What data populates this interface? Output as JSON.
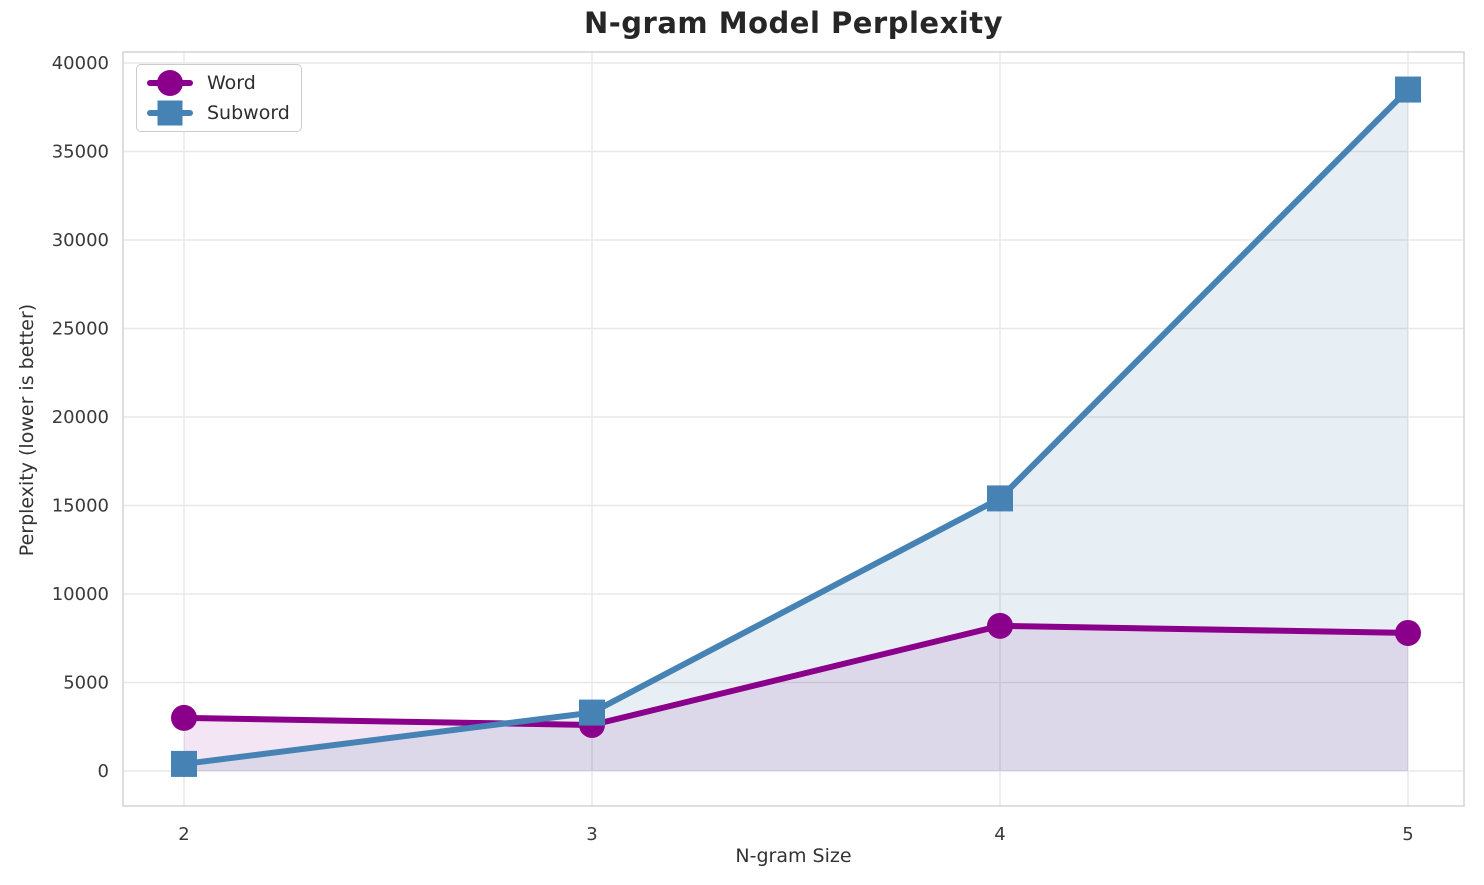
{
  "chart_data": {
    "type": "line",
    "title": "N-gram Model Perplexity",
    "xlabel": "N-gram Size",
    "ylabel": "Perplexity (lower is better)",
    "categories": [
      2,
      3,
      4,
      5
    ],
    "series": [
      {
        "name": "Word",
        "marker": "circle",
        "color": "#8B008B",
        "fill_opacity": 0.1,
        "values": [
          3000,
          2600,
          8200,
          7800
        ]
      },
      {
        "name": "Subword",
        "marker": "square",
        "color": "#4682B4",
        "fill_opacity": 0.13,
        "values": [
          400,
          3300,
          15400,
          38500
        ]
      }
    ],
    "ylim": [
      0,
      40000
    ],
    "yticks": [
      0,
      5000,
      10000,
      15000,
      20000,
      25000,
      30000,
      35000,
      40000
    ],
    "grid": true,
    "area_fill": true,
    "legend_position": "upper-left",
    "grid_color": "#e8e8e8",
    "spine_color": "#d4d4d4"
  }
}
